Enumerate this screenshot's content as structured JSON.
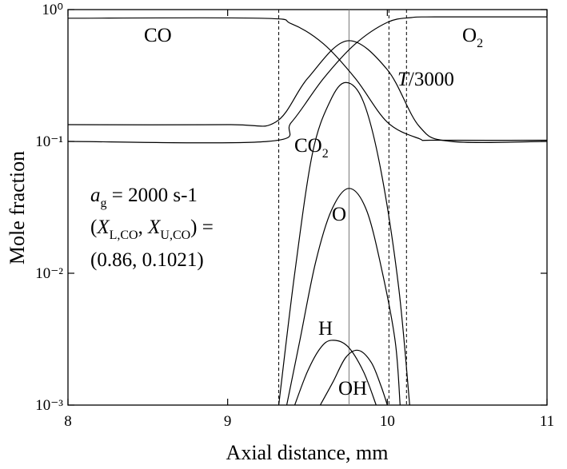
{
  "chart_data": {
    "type": "line",
    "x_label": "Axial distance, mm",
    "y_label": "Mole fraction",
    "xlim": [
      8,
      11
    ],
    "ylim": [
      0.001,
      1
    ],
    "yscale": "log",
    "xticks": [
      8,
      9,
      10,
      11
    ],
    "yticks": [
      {
        "value": 0.001,
        "label": "10⁻³"
      },
      {
        "value": 0.01,
        "label": "10⁻²"
      },
      {
        "value": 0.1,
        "label": "10⁻¹"
      },
      {
        "value": 1,
        "label": "10⁰"
      }
    ],
    "color": "#000000",
    "series": [
      {
        "name": "CO",
        "x": [
          8,
          9.2,
          9.4,
          9.6,
          9.8,
          10.0,
          10.2,
          10.3,
          11
        ],
        "values": [
          0.86,
          0.86,
          0.78,
          0.55,
          0.3,
          0.14,
          0.105,
          0.1021,
          0.1021
        ]
      },
      {
        "name": "O2",
        "x": [
          8,
          9.25,
          9.4,
          9.6,
          9.8,
          10.0,
          10.15,
          10.3,
          11
        ],
        "values": [
          0.1,
          0.1,
          0.14,
          0.3,
          0.55,
          0.8,
          0.87,
          0.88,
          0.88
        ]
      },
      {
        "name": "T/3000",
        "x": [
          8,
          9.0,
          9.3,
          9.5,
          9.75,
          10.0,
          10.2,
          10.4,
          11
        ],
        "values": [
          0.134,
          0.134,
          0.14,
          0.3,
          0.58,
          0.35,
          0.13,
          0.1,
          0.1
        ]
      },
      {
        "name": "CO2",
        "x": [
          9.32,
          9.42,
          9.53,
          9.64,
          9.74,
          9.85,
          9.96,
          10.07,
          10.14
        ],
        "values": [
          0.001,
          0.01,
          0.08,
          0.2,
          0.28,
          0.2,
          0.06,
          0.008,
          0.001
        ]
      },
      {
        "name": "O",
        "x": [
          9.37,
          9.45,
          9.55,
          9.65,
          9.76,
          9.87,
          9.97,
          10.05,
          10.08
        ],
        "values": [
          0.001,
          0.003,
          0.012,
          0.03,
          0.044,
          0.03,
          0.01,
          0.003,
          0.001
        ]
      },
      {
        "name": "H",
        "x": [
          9.42,
          9.5,
          9.58,
          9.65,
          9.75,
          9.85,
          9.93
        ],
        "values": [
          0.001,
          0.0018,
          0.0027,
          0.0031,
          0.0028,
          0.0018,
          0.001
        ]
      },
      {
        "name": "OH",
        "x": [
          9.58,
          9.66,
          9.74,
          9.82,
          9.9,
          9.96,
          10.0
        ],
        "values": [
          0.001,
          0.0015,
          0.0023,
          0.0026,
          0.0021,
          0.0014,
          0.001
        ]
      }
    ],
    "reference_lines": [
      {
        "x": 9.32,
        "style": "dashed"
      },
      {
        "x": 9.76,
        "style": "solid"
      },
      {
        "x": 10.01,
        "style": "dashed"
      },
      {
        "x": 10.12,
        "style": "dashed"
      }
    ],
    "annotations": [
      {
        "runs": [
          {
            "t": "CO"
          }
        ]
      },
      {
        "runs": [
          {
            "t": "O"
          },
          {
            "t": "2",
            "s": "sub"
          }
        ]
      },
      {
        "runs": [
          {
            "t": "T",
            "s": "it"
          },
          {
            "t": "/3000"
          }
        ]
      },
      {
        "runs": [
          {
            "t": "CO"
          },
          {
            "t": "2",
            "s": "sub"
          }
        ]
      },
      {
        "runs": [
          {
            "t": "O"
          }
        ]
      },
      {
        "runs": [
          {
            "t": "H"
          }
        ]
      },
      {
        "runs": [
          {
            "t": "OH"
          }
        ]
      },
      {
        "runs": [
          {
            "t": "a",
            "s": "it"
          },
          {
            "t": "g",
            "s": "sub"
          },
          {
            "t": " = 2000 s-1"
          }
        ]
      },
      {
        "runs": [
          {
            "t": "("
          },
          {
            "t": "X",
            "s": "it"
          },
          {
            "t": "L,CO",
            "s": "sub"
          },
          {
            "t": ", "
          },
          {
            "t": "X",
            "s": "it"
          },
          {
            "t": "U,CO",
            "s": "sub"
          },
          {
            "t": ") ="
          }
        ]
      },
      {
        "runs": [
          {
            "t": "(0.86, 0.1021)"
          }
        ]
      }
    ]
  }
}
